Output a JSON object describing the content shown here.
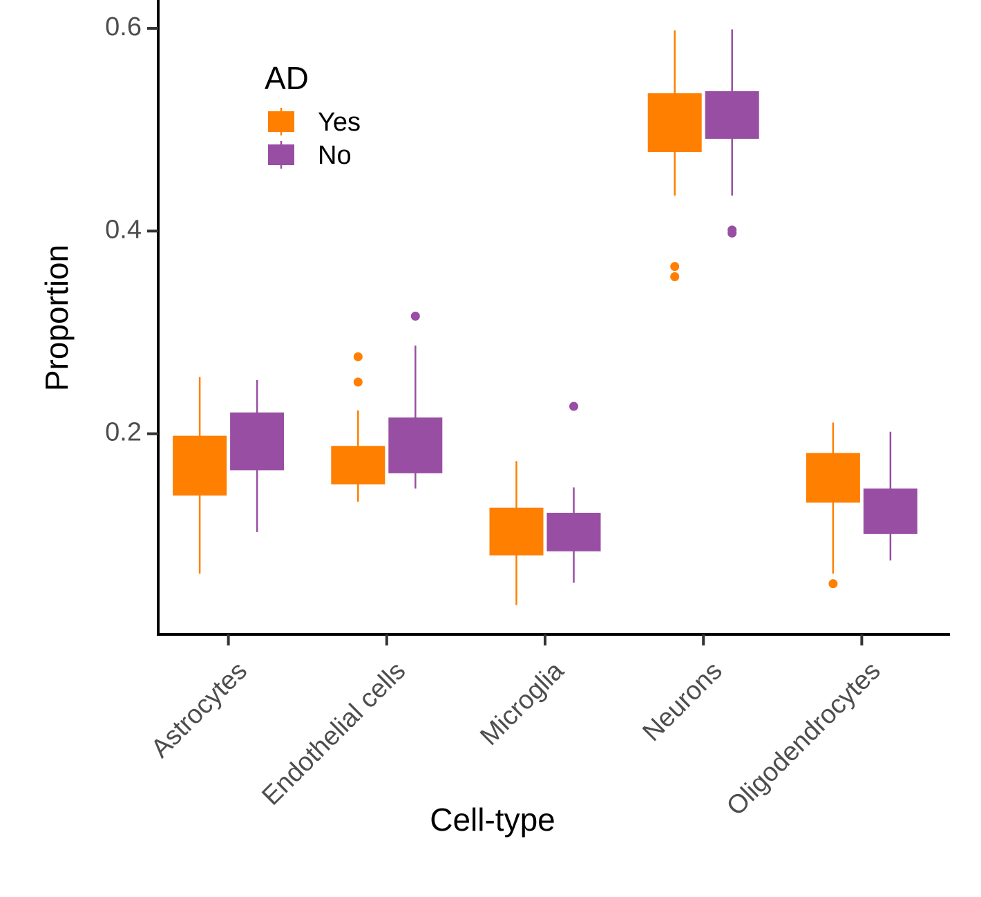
{
  "chart_data": {
    "type": "box",
    "x_label": "Cell-type",
    "y_label": "Proportion",
    "legend_title": "AD",
    "legend_position": "top-left",
    "categories": [
      "Astrocytes",
      "Endothelial cells",
      "Microglia",
      "Neurons",
      "Oligodendrocytes"
    ],
    "ylim": [
      0.002,
      0.628
    ],
    "yticks": [
      0.2,
      0.4,
      0.6
    ],
    "series": [
      {
        "name": "Yes",
        "color": "#ff7f00",
        "boxes": [
          {
            "whislo": 0.062,
            "q1": 0.139,
            "q3": 0.198,
            "whishi": 0.256,
            "outliers": []
          },
          {
            "whislo": 0.133,
            "q1": 0.15,
            "q3": 0.188,
            "whishi": 0.223,
            "outliers": [
              0.276,
              0.251
            ]
          },
          {
            "whislo": 0.031,
            "q1": 0.08,
            "q3": 0.127,
            "whishi": 0.173,
            "outliers": []
          },
          {
            "whislo": 0.435,
            "q1": 0.478,
            "q3": 0.536,
            "whishi": 0.598,
            "outliers": [
              0.365,
              0.355
            ]
          },
          {
            "whislo": 0.062,
            "q1": 0.132,
            "q3": 0.181,
            "whishi": 0.211,
            "outliers": [
              0.052
            ]
          }
        ]
      },
      {
        "name": "No",
        "color": "#984ea3",
        "boxes": [
          {
            "whislo": 0.103,
            "q1": 0.164,
            "q3": 0.221,
            "whishi": 0.253,
            "outliers": []
          },
          {
            "whislo": 0.146,
            "q1": 0.161,
            "q3": 0.216,
            "whishi": 0.287,
            "outliers": [
              0.316
            ]
          },
          {
            "whislo": 0.053,
            "q1": 0.084,
            "q3": 0.122,
            "whishi": 0.147,
            "outliers": [
              0.227
            ]
          },
          {
            "whislo": 0.435,
            "q1": 0.491,
            "q3": 0.538,
            "whishi": 0.599,
            "outliers": [
              0.401,
              0.398
            ]
          },
          {
            "whislo": 0.075,
            "q1": 0.101,
            "q3": 0.146,
            "whishi": 0.202,
            "outliers": []
          }
        ]
      }
    ]
  }
}
